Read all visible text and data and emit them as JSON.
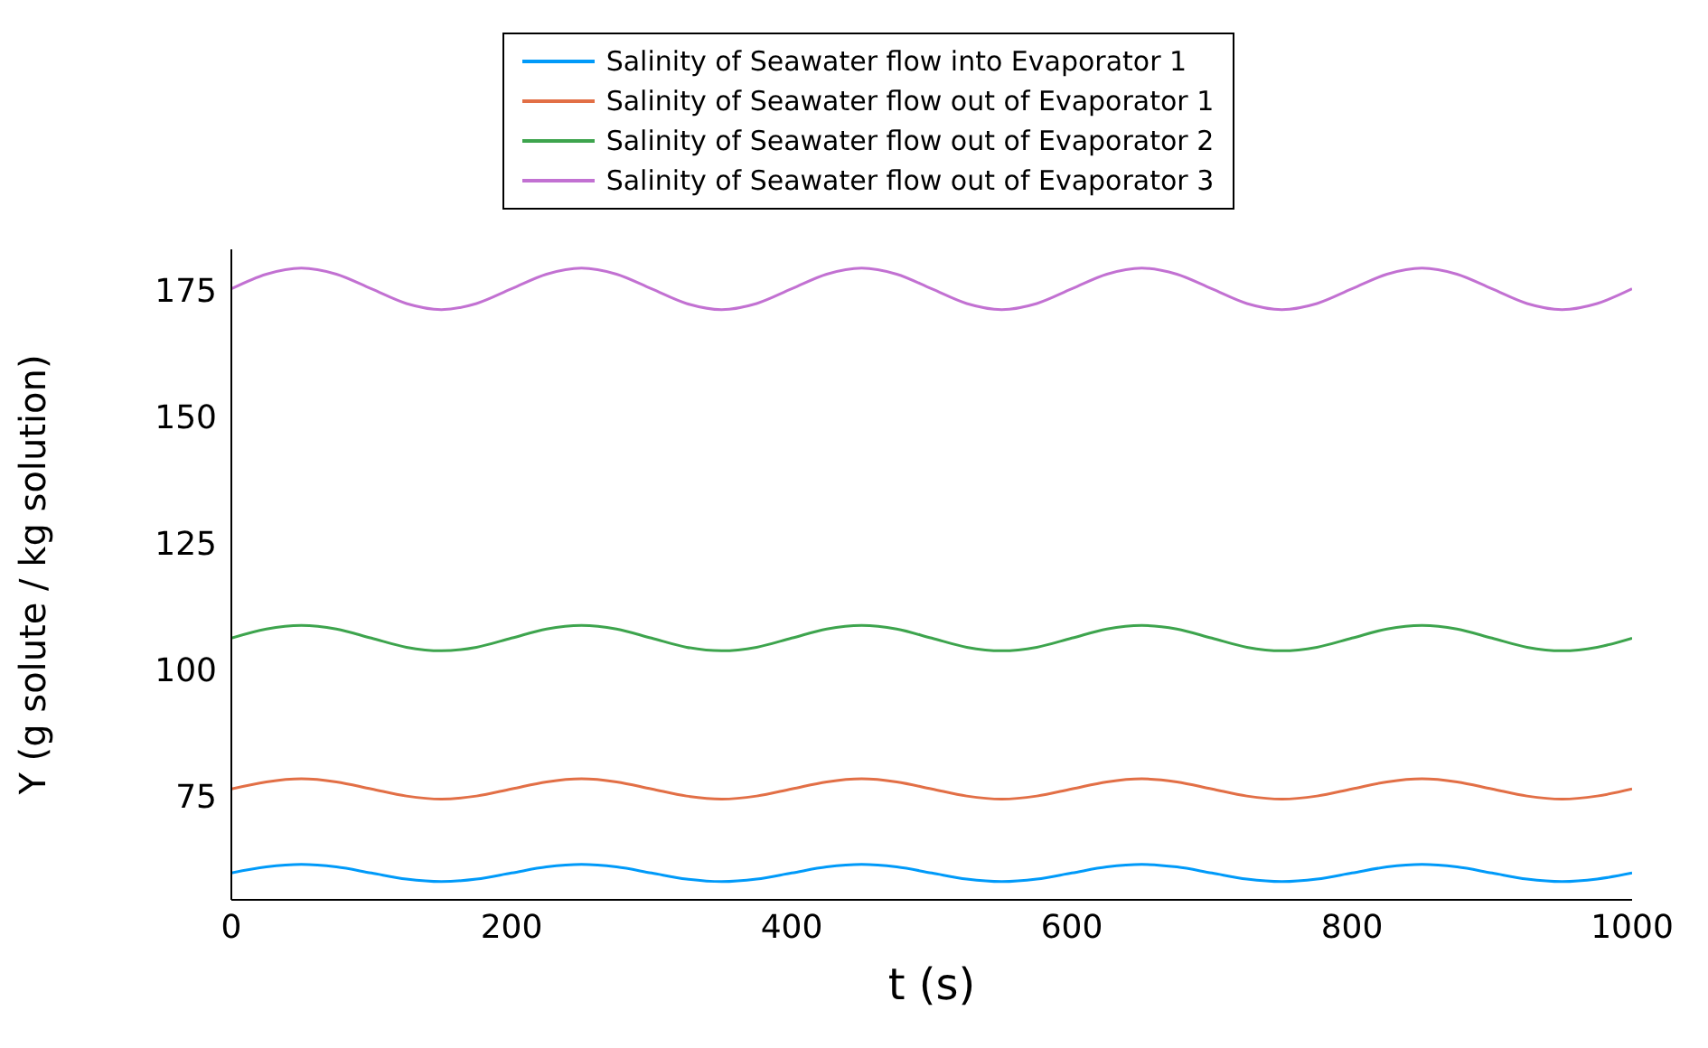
{
  "chart_data": {
    "type": "line",
    "xlabel": "t (s)",
    "ylabel": "Y (g solute / kg solution)",
    "x": [
      0,
      25,
      50,
      75,
      100,
      125,
      150,
      175,
      200,
      225,
      250,
      275,
      300,
      325,
      350,
      375,
      400,
      425,
      450,
      475,
      500,
      525,
      550,
      575,
      600,
      625,
      650,
      675,
      700,
      725,
      750,
      775,
      800,
      825,
      850,
      875,
      900,
      925,
      950,
      975,
      1000
    ],
    "series": [
      {
        "name": "Salinity of Seawater flow into Evaporator 1",
        "color": "#009af9",
        "values": [
          59.8,
          61.0,
          61.5,
          61.0,
          59.8,
          58.6,
          58.1,
          58.6,
          59.8,
          61.0,
          61.5,
          61.0,
          59.8,
          58.6,
          58.1,
          58.6,
          59.8,
          61.0,
          61.5,
          61.0,
          59.8,
          58.6,
          58.1,
          58.6,
          59.8,
          61.0,
          61.5,
          61.0,
          59.8,
          58.6,
          58.1,
          58.6,
          59.8,
          61.0,
          61.5,
          61.0,
          59.8,
          58.6,
          58.1,
          58.6,
          59.8
        ]
      },
      {
        "name": "Salinity of Seawater flow out of Evaporator 1",
        "color": "#e26f46",
        "values": [
          76.4,
          77.8,
          78.4,
          77.8,
          76.4,
          75.0,
          74.4,
          75.0,
          76.4,
          77.8,
          78.4,
          77.8,
          76.4,
          75.0,
          74.4,
          75.0,
          76.4,
          77.8,
          78.4,
          77.8,
          76.4,
          75.0,
          74.4,
          75.0,
          76.4,
          77.8,
          78.4,
          77.8,
          76.4,
          75.0,
          74.4,
          75.0,
          76.4,
          77.8,
          78.4,
          77.8,
          76.4,
          75.0,
          74.4,
          75.0,
          76.4
        ]
      },
      {
        "name": "Salinity of Seawater flow out of Evaporator 2",
        "color": "#3da44d",
        "values": [
          106.2,
          108.0,
          108.7,
          108.0,
          106.2,
          104.4,
          103.7,
          104.4,
          106.2,
          108.0,
          108.7,
          108.0,
          106.2,
          104.4,
          103.7,
          104.4,
          106.2,
          108.0,
          108.7,
          108.0,
          106.2,
          104.4,
          103.7,
          104.4,
          106.2,
          108.0,
          108.7,
          108.0,
          106.2,
          104.4,
          103.7,
          104.4,
          106.2,
          108.0,
          108.7,
          108.0,
          106.2,
          104.4,
          103.7,
          104.4,
          106.2
        ]
      },
      {
        "name": "Salinity of Seawater flow out of Evaporator 3",
        "color": "#c271d2",
        "values": [
          175.2,
          178.1,
          179.3,
          178.1,
          175.2,
          172.3,
          171.1,
          172.3,
          175.2,
          178.1,
          179.3,
          178.1,
          175.2,
          172.3,
          171.1,
          172.3,
          175.2,
          178.1,
          179.3,
          178.1,
          175.2,
          172.3,
          171.1,
          172.3,
          175.2,
          178.1,
          179.3,
          178.1,
          175.2,
          172.3,
          171.1,
          172.3,
          175.2,
          178.1,
          179.3,
          178.1,
          175.2,
          172.3,
          171.1,
          172.3,
          175.2
        ]
      }
    ],
    "xlim": [
      0,
      1000
    ],
    "xticks": [
      0,
      200,
      400,
      600,
      800,
      1000
    ],
    "ylim": [
      54.5,
      183
    ],
    "yticks": [
      75,
      100,
      125,
      150,
      175
    ],
    "grid": false,
    "legend": "top",
    "marker": "none",
    "line_style": "solid"
  }
}
